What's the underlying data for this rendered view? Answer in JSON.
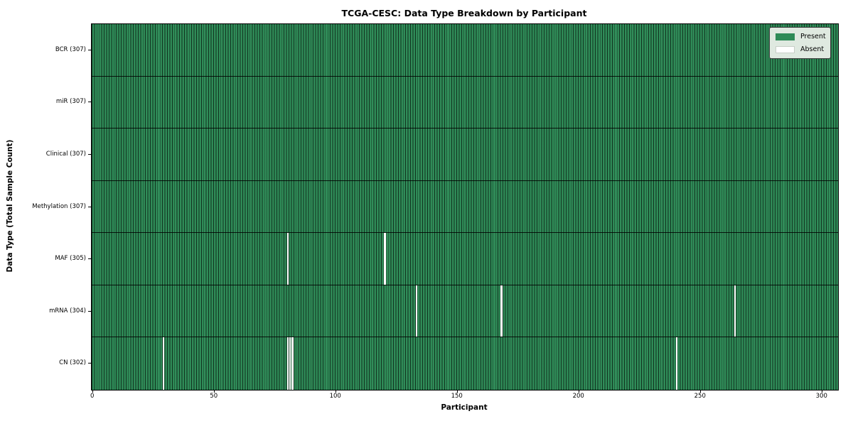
{
  "figure": {
    "title": "TCGA-CESC: Data Type Breakdown by Participant",
    "xlabel": "Participant",
    "ylabel": "Data Type (Total Sample Count)"
  },
  "legend": {
    "items": [
      {
        "label": "Present",
        "color": "#2E8B57"
      },
      {
        "label": "Absent",
        "color": "#FFFFFF"
      }
    ]
  },
  "chart_data": {
    "type": "heatmap",
    "title": "TCGA-CESC: Data Type Breakdown by Participant",
    "xlabel": "Participant",
    "ylabel": "Data Type (Total Sample Count)",
    "n_participants": 307,
    "xlim": [
      -0.5,
      306.5
    ],
    "x_ticks": [
      0,
      50,
      100,
      150,
      200,
      250,
      300
    ],
    "cell_colors": {
      "present": "#2E8B57",
      "absent": "#FFFFFF",
      "cell_edge": "#000000"
    },
    "legend_position": "upper right",
    "legend_entries": [
      "Present",
      "Absent"
    ],
    "rows": [
      {
        "label": "BCR (307)",
        "data_type": "BCR",
        "present_count": 307,
        "absent_participants": []
      },
      {
        "label": "miR (307)",
        "data_type": "miR",
        "present_count": 307,
        "absent_participants": []
      },
      {
        "label": "Clinical (307)",
        "data_type": "Clinical",
        "present_count": 307,
        "absent_participants": []
      },
      {
        "label": "Methylation (307)",
        "data_type": "Methylation",
        "present_count": 307,
        "absent_participants": []
      },
      {
        "label": "MAF (305)",
        "data_type": "MAF",
        "present_count": 305,
        "absent_participants": [
          80,
          120
        ]
      },
      {
        "label": "mRNA (304)",
        "data_type": "mRNA",
        "present_count": 304,
        "absent_participants": [
          133,
          168,
          264
        ]
      },
      {
        "label": "CN (302)",
        "data_type": "CN",
        "present_count": 302,
        "absent_participants": [
          29,
          80,
          81,
          82,
          240
        ]
      }
    ]
  }
}
